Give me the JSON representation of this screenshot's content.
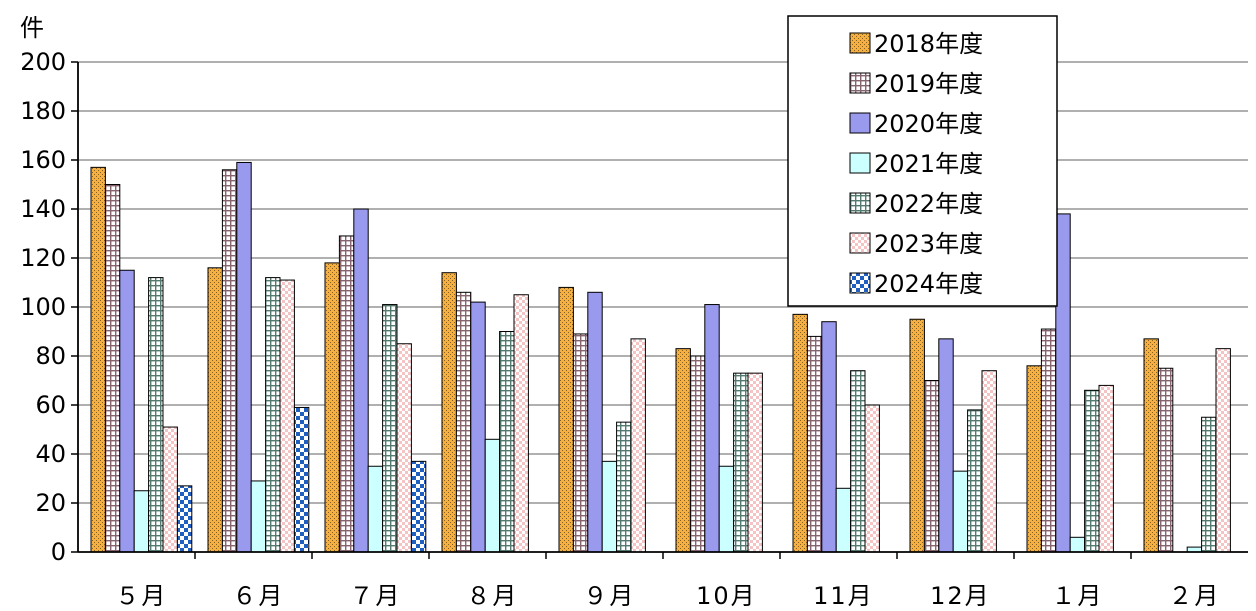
{
  "chart_data": {
    "type": "bar",
    "title": "",
    "xlabel": "",
    "ylabel": "件",
    "ylim": [
      0,
      200
    ],
    "yticks": [
      0,
      20,
      40,
      60,
      80,
      100,
      120,
      140,
      160,
      180,
      200
    ],
    "grid": true,
    "legend_position": "top-right",
    "categories": [
      "５月",
      "６月",
      "７月",
      "８月",
      "９月",
      "10月",
      "11月",
      "12月",
      "１月",
      "２月"
    ],
    "series": [
      {
        "name": "2018年度",
        "color": "#f5b041",
        "pattern": "dots",
        "values": [
          157,
          116,
          118,
          114,
          108,
          83,
          97,
          95,
          76,
          87
        ]
      },
      {
        "name": "2019年度",
        "color": "#f4b6c8",
        "pattern": "grid",
        "values": [
          150,
          156,
          129,
          106,
          89,
          80,
          88,
          70,
          91,
          75
        ]
      },
      {
        "name": "2020年度",
        "color": "#9999ee",
        "pattern": "solid",
        "values": [
          115,
          159,
          140,
          102,
          106,
          101,
          94,
          87,
          138,
          null
        ]
      },
      {
        "name": "2021年度",
        "color": "#ccffff",
        "pattern": "solid",
        "values": [
          25,
          29,
          35,
          46,
          37,
          35,
          26,
          33,
          6,
          2
        ]
      },
      {
        "name": "2022年度",
        "color": "#99ddcc",
        "pattern": "grid",
        "values": [
          112,
          112,
          101,
          90,
          53,
          73,
          74,
          58,
          66,
          55
        ]
      },
      {
        "name": "2023年度",
        "color": "#f4c4c4",
        "pattern": "check",
        "values": [
          51,
          111,
          85,
          105,
          87,
          73,
          60,
          74,
          68,
          83
        ]
      },
      {
        "name": "2024年度",
        "color": "#1f5fbf",
        "pattern": "checker",
        "values": [
          27,
          59,
          37,
          null,
          null,
          null,
          null,
          null,
          null,
          null
        ]
      }
    ]
  }
}
